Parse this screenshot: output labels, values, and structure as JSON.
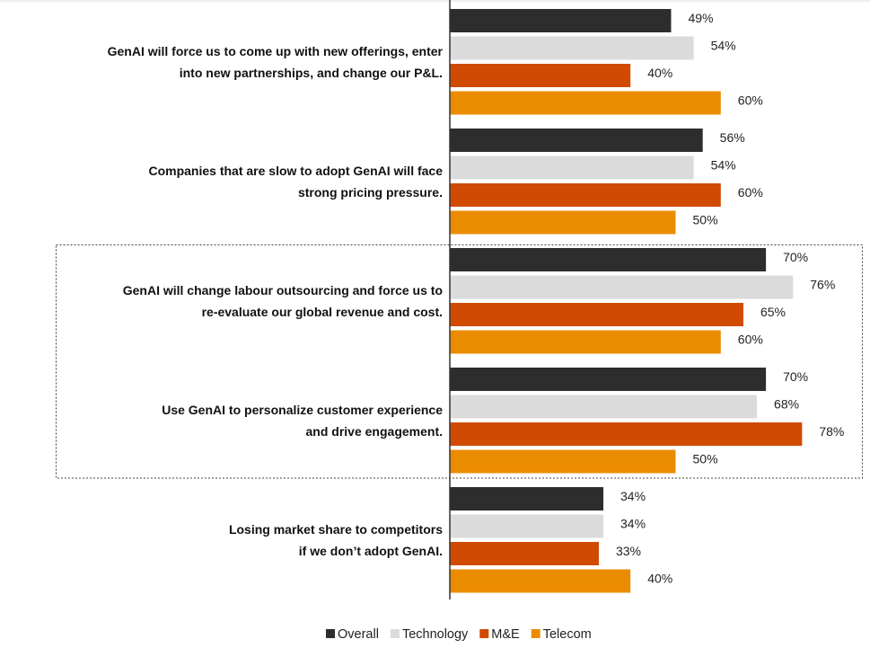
{
  "chart_data": {
    "type": "bar",
    "orientation": "horizontal",
    "categories": [
      [
        "GenAI will force us to come up with new offerings, enter",
        "into new partnerships, and change our P&L."
      ],
      [
        "Companies that are slow to adopt GenAI will face",
        "strong pricing pressure."
      ],
      [
        "GenAI will change labour outsourcing and force us to",
        "re-evaluate our global revenue and cost."
      ],
      [
        "Use GenAI to personalize customer experience",
        "and drive engagement."
      ],
      [
        "Losing market share to competitors",
        "if we don’t adopt GenAI."
      ]
    ],
    "series": [
      {
        "name": "Overall",
        "color": "#2d2d2d",
        "values": [
          49,
          56,
          70,
          70,
          34
        ]
      },
      {
        "name": "Technology",
        "color": "#dbdbdb",
        "values": [
          54,
          54,
          76,
          68,
          34
        ]
      },
      {
        "name": "M&E",
        "color": "#d04a02",
        "values": [
          40,
          60,
          65,
          78,
          33
        ]
      },
      {
        "name": "Telecom",
        "color": "#eb8c00",
        "values": [
          60,
          50,
          60,
          50,
          40
        ]
      }
    ],
    "value_suffix": "%",
    "xlim": [
      0,
      100
    ],
    "grid": false,
    "legend": "bottom-center",
    "highlighted_categories": [
      2,
      3
    ]
  }
}
